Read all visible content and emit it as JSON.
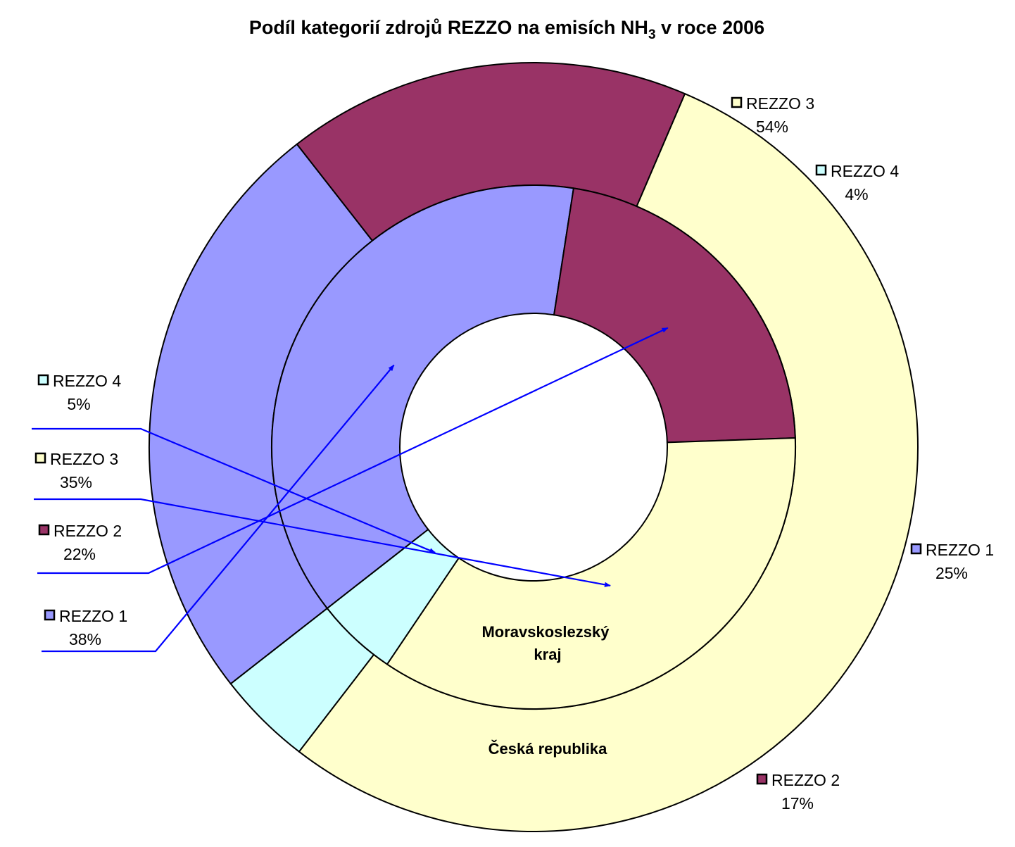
{
  "chart_data": {
    "type": "pie",
    "style": "double-ring-donut",
    "title": "Podíl kategorií zdrojů REZZO na emisích NH₃ v roce 2006",
    "title_parts": {
      "main": "Podíl kategorií zdrojů REZZO na emisích NH",
      "subscript": "3",
      "tail": " v roce 2006"
    },
    "categories": [
      "REZZO 1",
      "REZZO 2",
      "REZZO 3",
      "REZZO 4"
    ],
    "colors": {
      "REZZO 1": "#9999ff",
      "REZZO 2": "#993366",
      "REZZO 3": "#ffffcc",
      "REZZO 4": "#ccffff"
    },
    "series": [
      {
        "name": "Česká republika",
        "ring": "outer",
        "values": [
          25,
          17,
          54,
          4
        ],
        "labels": [
          "25%",
          "17%",
          "54%",
          "4%"
        ]
      },
      {
        "name": "Moravskoslezský kraj",
        "name_lines": [
          "Moravskoslezský",
          "kraj"
        ],
        "ring": "inner",
        "values": [
          38,
          22,
          35,
          5
        ],
        "labels": [
          "38%",
          "22%",
          "35%",
          "5%"
        ]
      }
    ],
    "legend": "none",
    "callout_color": "#0000ff"
  }
}
